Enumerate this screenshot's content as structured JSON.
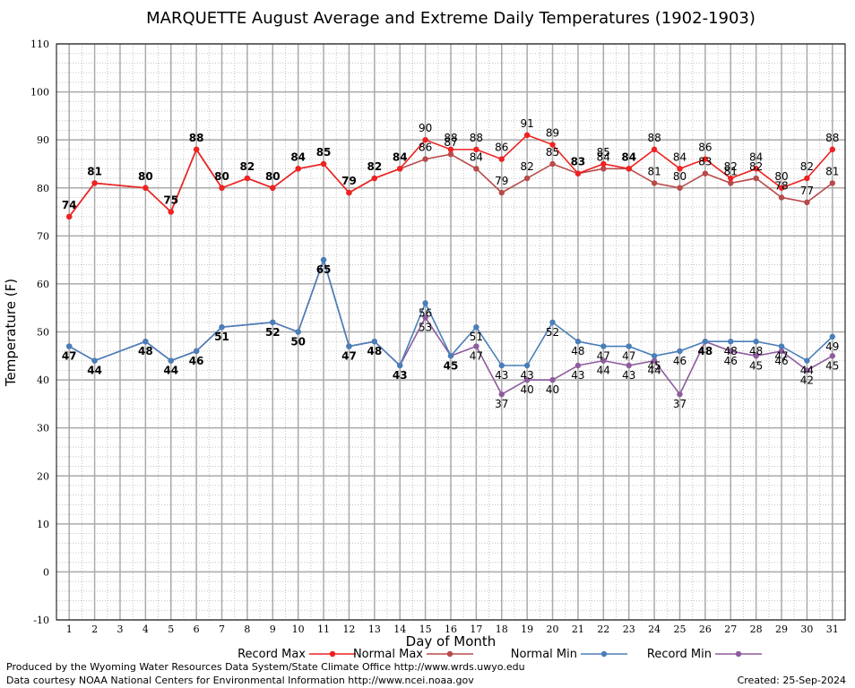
{
  "chart_data": {
    "type": "line",
    "title": "MARQUETTE August Average and Extreme Daily Temperatures (1902-1903)",
    "xlabel": "Day of Month",
    "ylabel": "Temperature (F)",
    "xlim": [
      0.5,
      31.5
    ],
    "ylim": [
      -10,
      110
    ],
    "xticks": [
      1,
      2,
      3,
      4,
      5,
      6,
      7,
      8,
      9,
      10,
      11,
      12,
      13,
      14,
      15,
      16,
      17,
      18,
      19,
      20,
      21,
      22,
      23,
      24,
      25,
      26,
      27,
      28,
      29,
      30,
      31
    ],
    "yticks": [
      -10,
      0,
      10,
      20,
      30,
      40,
      50,
      60,
      70,
      80,
      90,
      100,
      110
    ],
    "grid": true,
    "legend_position": "bottom",
    "series": [
      {
        "name": "Record Max",
        "color": "#ee2222",
        "x": [
          1,
          2,
          4,
          5,
          6,
          7,
          8,
          9,
          10,
          11,
          12,
          13,
          14,
          15,
          16,
          17,
          18,
          19,
          20,
          21,
          22,
          23,
          24,
          25,
          26,
          27,
          28,
          29,
          30,
          31
        ],
        "values": [
          74,
          81,
          80,
          75,
          88,
          80,
          82,
          80,
          84,
          85,
          79,
          82,
          84,
          90,
          88,
          88,
          86,
          91,
          89,
          83,
          85,
          84,
          88,
          84,
          86,
          82,
          84,
          80,
          82,
          88
        ]
      },
      {
        "name": "Normal Max",
        "color": "#b84a4a",
        "x": [
          1,
          2,
          4,
          5,
          6,
          7,
          8,
          9,
          10,
          11,
          12,
          13,
          14,
          15,
          16,
          17,
          18,
          19,
          20,
          21,
          22,
          23,
          24,
          25,
          26,
          27,
          28,
          29,
          30,
          31
        ],
        "values": [
          74,
          81,
          80,
          75,
          88,
          80,
          82,
          80,
          84,
          85,
          79,
          82,
          84,
          86,
          87,
          84,
          79,
          82,
          85,
          83,
          84,
          84,
          81,
          80,
          83,
          81,
          82,
          78,
          77,
          81
        ]
      },
      {
        "name": "Normal Min",
        "color": "#4a7eb8",
        "x": [
          1,
          2,
          4,
          5,
          6,
          7,
          9,
          10,
          11,
          12,
          13,
          14,
          15,
          16,
          17,
          18,
          19,
          20,
          21,
          22,
          23,
          24,
          25,
          26,
          27,
          28,
          29,
          30,
          31
        ],
        "values": [
          47,
          44,
          48,
          44,
          46,
          51,
          52,
          50,
          65,
          47,
          48,
          43,
          56,
          45,
          51,
          43,
          43,
          52,
          48,
          47,
          47,
          45,
          46,
          48,
          48,
          48,
          47,
          44,
          49
        ]
      },
      {
        "name": "Record Min",
        "color": "#8e5c9e",
        "x": [
          1,
          2,
          4,
          5,
          6,
          7,
          9,
          10,
          11,
          12,
          13,
          14,
          15,
          16,
          17,
          18,
          19,
          20,
          21,
          22,
          23,
          24,
          25,
          26,
          27,
          28,
          29,
          30,
          31
        ],
        "values": [
          47,
          44,
          48,
          44,
          46,
          51,
          52,
          50,
          65,
          47,
          48,
          43,
          53,
          45,
          47,
          37,
          40,
          40,
          43,
          44,
          43,
          44,
          37,
          48,
          46,
          45,
          46,
          42,
          45
        ]
      }
    ]
  },
  "footer": {
    "credit_line1": "Produced by the Wyoming Water Resources Data System/State Climate Office http://www.wrds.uwyo.edu",
    "credit_line2": "Data courtesy NOAA National Centers for Environmental Information http://www.ncei.noaa.gov",
    "created": "Created:  25-Sep-2024"
  }
}
